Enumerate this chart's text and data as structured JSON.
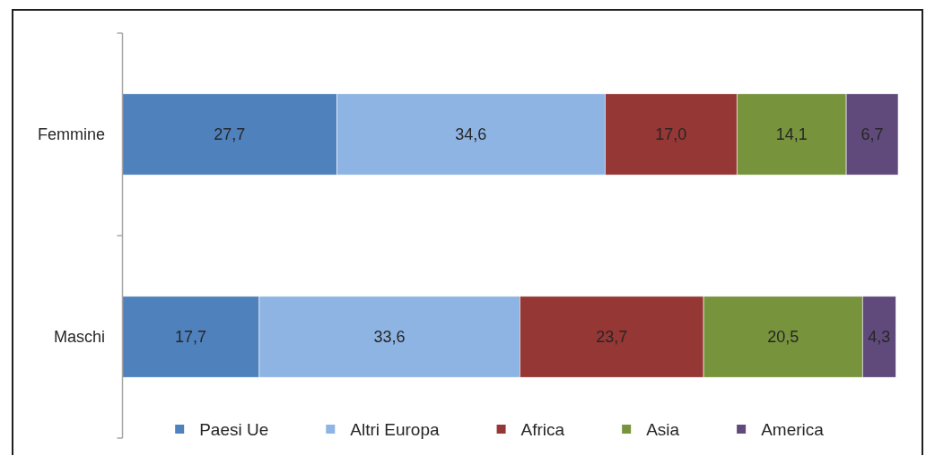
{
  "chart_data": {
    "type": "bar",
    "orientation": "horizontal",
    "stacked": true,
    "legend": "bottom",
    "categories": [
      "Femmine",
      "Maschi"
    ],
    "series": [
      {
        "name": "Paesi Ue",
        "color": "#4f81bd",
        "values": [
          27.7,
          17.7
        ],
        "value_labels": [
          "27,7",
          "17,7"
        ]
      },
      {
        "name": "Altri Europa",
        "color": "#8eb4e3",
        "values": [
          34.6,
          33.6
        ],
        "value_labels": [
          "34,6",
          "33,6"
        ]
      },
      {
        "name": "Africa",
        "color": "#953735",
        "values": [
          17.0,
          23.7
        ],
        "value_labels": [
          "17,0",
          "23,7"
        ]
      },
      {
        "name": "Asia",
        "color": "#77933c",
        "values": [
          14.1,
          20.5
        ],
        "value_labels": [
          "14,1",
          "20,5"
        ]
      },
      {
        "name": "America",
        "color": "#604a7b",
        "values": [
          6.7,
          4.3
        ],
        "value_labels": [
          "6,7",
          "4,3"
        ]
      }
    ]
  }
}
